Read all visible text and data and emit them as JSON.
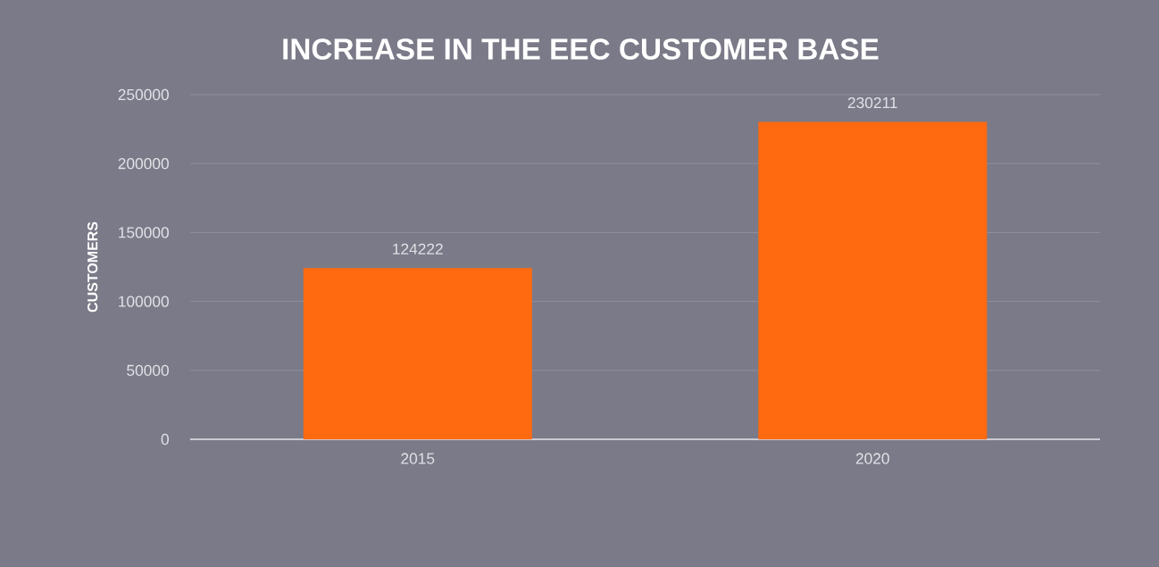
{
  "chart_data": {
    "type": "bar",
    "title": "INCREASE IN THE EEC CUSTOMER BASE",
    "ylabel": "CUSTOMERS",
    "categories": [
      "2015",
      "2020"
    ],
    "values": [
      124222,
      230211
    ],
    "color": "#ff6a10",
    "ylim": [
      0,
      250000
    ],
    "yticks": [
      0,
      50000,
      100000,
      150000,
      200000,
      250000
    ],
    "grid": "y",
    "data_labels": true
  }
}
